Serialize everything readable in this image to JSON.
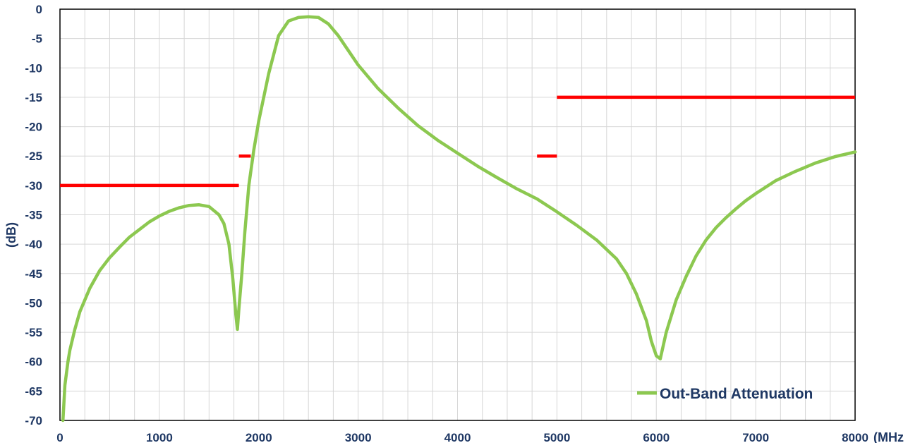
{
  "chart_data": {
    "type": "line",
    "xlabel": "(MHz",
    "ylabel": "(dB)",
    "xlim": [
      0,
      8000
    ],
    "ylim": [
      -70,
      0
    ],
    "x_ticks": [
      "0",
      "1000",
      "2000",
      "3000",
      "4000",
      "5000",
      "6000",
      "7000",
      "8000"
    ],
    "y_ticks": [
      "0",
      "-5",
      "-10",
      "-15",
      "-20",
      "-25",
      "-30",
      "-35",
      "-40",
      "-45",
      "-50",
      "-55",
      "-60",
      "-65",
      "-70"
    ],
    "grid": true,
    "legend_position": "bottom-right",
    "series": [
      {
        "name": "Out-Band Attenuation",
        "color": "#8cc850",
        "points": [
          [
            30,
            -70
          ],
          [
            50,
            -64
          ],
          [
            80,
            -60
          ],
          [
            100,
            -58
          ],
          [
            150,
            -54.5
          ],
          [
            200,
            -51.5
          ],
          [
            300,
            -47.5
          ],
          [
            400,
            -44.5
          ],
          [
            500,
            -42.3
          ],
          [
            600,
            -40.5
          ],
          [
            700,
            -38.8
          ],
          [
            800,
            -37.5
          ],
          [
            900,
            -36.2
          ],
          [
            1000,
            -35.2
          ],
          [
            1100,
            -34.4
          ],
          [
            1200,
            -33.8
          ],
          [
            1300,
            -33.4
          ],
          [
            1400,
            -33.3
          ],
          [
            1500,
            -33.6
          ],
          [
            1600,
            -35
          ],
          [
            1650,
            -36.5
          ],
          [
            1700,
            -40
          ],
          [
            1740,
            -46
          ],
          [
            1770,
            -52
          ],
          [
            1785,
            -54.5
          ],
          [
            1800,
            -51
          ],
          [
            1830,
            -45
          ],
          [
            1860,
            -38
          ],
          [
            1900,
            -30
          ],
          [
            1950,
            -24
          ],
          [
            2000,
            -19
          ],
          [
            2100,
            -11
          ],
          [
            2200,
            -4.5
          ],
          [
            2300,
            -2
          ],
          [
            2400,
            -1.4
          ],
          [
            2500,
            -1.3
          ],
          [
            2600,
            -1.4
          ],
          [
            2700,
            -2.5
          ],
          [
            2800,
            -4.5
          ],
          [
            2900,
            -7
          ],
          [
            3000,
            -9.5
          ],
          [
            3200,
            -13.5
          ],
          [
            3400,
            -16.8
          ],
          [
            3600,
            -19.8
          ],
          [
            3800,
            -22.3
          ],
          [
            4000,
            -24.5
          ],
          [
            4200,
            -26.7
          ],
          [
            4400,
            -28.7
          ],
          [
            4600,
            -30.6
          ],
          [
            4800,
            -32.3
          ],
          [
            5000,
            -34.5
          ],
          [
            5200,
            -36.8
          ],
          [
            5400,
            -39.3
          ],
          [
            5600,
            -42.5
          ],
          [
            5700,
            -45
          ],
          [
            5800,
            -48.5
          ],
          [
            5900,
            -53
          ],
          [
            5950,
            -56.5
          ],
          [
            6000,
            -59
          ],
          [
            6040,
            -59.5
          ],
          [
            6100,
            -55
          ],
          [
            6200,
            -49.5
          ],
          [
            6300,
            -45.5
          ],
          [
            6400,
            -42
          ],
          [
            6500,
            -39.3
          ],
          [
            6600,
            -37.2
          ],
          [
            6700,
            -35.5
          ],
          [
            6800,
            -34
          ],
          [
            6900,
            -32.6
          ],
          [
            7000,
            -31.4
          ],
          [
            7200,
            -29.2
          ],
          [
            7400,
            -27.6
          ],
          [
            7600,
            -26.2
          ],
          [
            7800,
            -25.1
          ],
          [
            8000,
            -24.3
          ]
        ]
      },
      {
        "name": "",
        "color": "#ff0000",
        "segments": [
          [
            [
              0,
              -30
            ],
            [
              1800,
              -30
            ]
          ],
          [
            [
              1800,
              -25
            ],
            [
              1920,
              -25
            ]
          ],
          [
            [
              4800,
              -25
            ],
            [
              5000,
              -25
            ]
          ],
          [
            [
              5000,
              -15
            ],
            [
              8000,
              -15
            ]
          ]
        ]
      }
    ]
  }
}
